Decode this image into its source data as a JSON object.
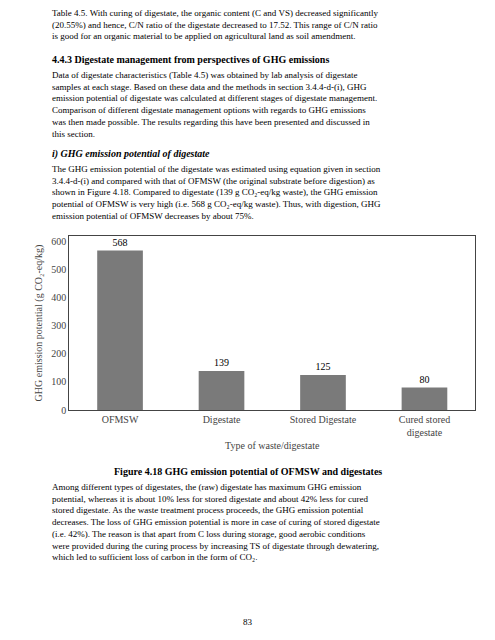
{
  "chart_data": {
    "type": "bar",
    "title": "Figure 4.18 GHG emission potential of OFMSW and digestates",
    "categories": [
      "OFMSW",
      "Digestate",
      "Stored Digestate",
      "Cured stored\ndigestate"
    ],
    "values": [
      568,
      139,
      125,
      80
    ],
    "color": "#7a7a7a",
    "ylim": [
      0,
      620
    ],
    "yticks": [
      0,
      100,
      200,
      300,
      400,
      500,
      600
    ],
    "ylabel": "GHG emission potential (g CO₂-eq/kg)",
    "xlabel": "Type of waste/digestate",
    "data_labels": true,
    "grid": false,
    "annotations": [
      "Table 4.5. With curing of digestate, the organic content (C and VS) decreased significantly\n(20.55%) and hence, C/N ratio of the digestate decreased to 17.52. This range of C/N ratio\nis good for an organic material to be applied on agricultural land as soil amendment.",
      "4.4.3 Digestate management from perspectives of GHG emissions",
      "Data of digestate characteristics (Table 4.5) was obtained by lab analysis of digestate\nsamples at each stage. Based on these data and the methods in section 3.4.4-d-(i), GHG\nemission potential of digestate was calculated at different stages of digestate management.\nComparison of different digestate management options with regards to GHG emissions\nwas then made possible. The results regarding this have been presented and discussed in\nthis section.",
      "i) GHG emission potential of digestate",
      "The GHG emission potential of the digestate was estimated using equation given in section\n3.4.4-d-(i) and compared with that of OFMSW (the original substrate before digestion) as\nshown in Figure 4.18. Compared to digestate (139 g CO₂-eq/kg waste), the GHG emission\npotential of OFMSW is very high (i.e. 568 g CO₂-eq/kg waste). Thus, with digestion, GHG\nemission potential of OFMSW decreases by about 75%.",
      "Among different types of digestates, the (raw) digestate has maximum GHG emission\npotential, whereas it is about 10% less for stored digestate and about 42% less for cured\nstored digestate. As the waste treatment process proceeds, the GHG emission potential\ndecreases. The loss of GHG emission potential is more in case of curing of stored digestate\n(i.e. 42%). The reason is that apart from C loss during storage, good aerobic conditions\nwere provided during the curing process by increasing TS of digestate through dewatering,\nwhich led to sufficient loss of carbon in the form of CO₂.",
      "83"
    ]
  }
}
